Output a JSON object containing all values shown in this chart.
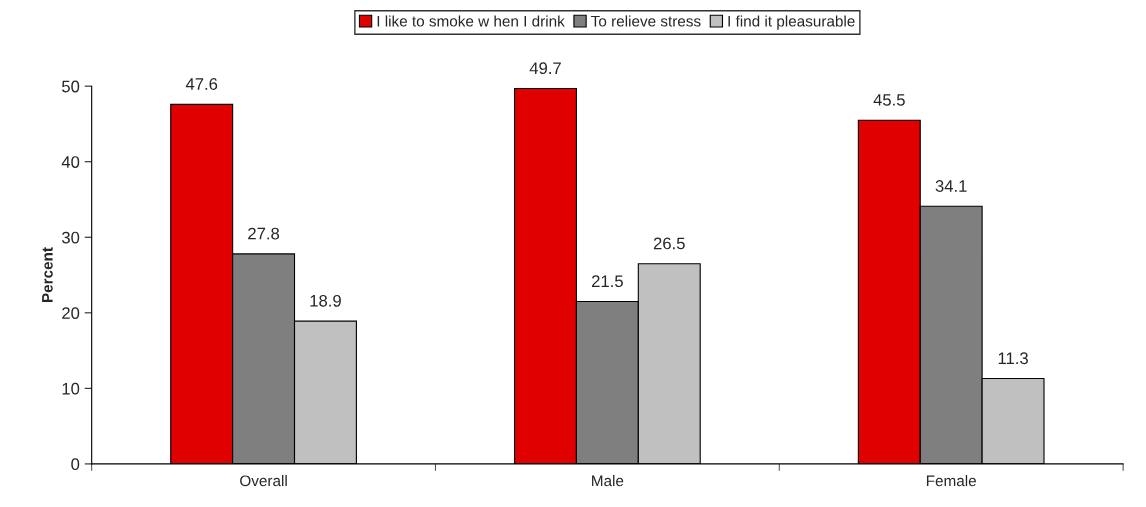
{
  "chart_data": {
    "type": "bar",
    "ylabel": "Percent",
    "categories": [
      "Overall",
      "Male",
      "Female"
    ],
    "series": [
      {
        "name": "I like to smoke w hen I drink",
        "color": "#e00000",
        "values": [
          47.6,
          49.7,
          45.5
        ]
      },
      {
        "name": "To relieve stress",
        "color": "#7f7f7f",
        "values": [
          27.8,
          21.5,
          34.1
        ]
      },
      {
        "name": "I find it pleasurable",
        "color": "#c0c0c0",
        "values": [
          18.9,
          26.5,
          11.3
        ]
      }
    ],
    "ylim": [
      0,
      50
    ],
    "yticks": [
      0,
      10,
      20,
      30,
      40,
      50
    ],
    "grid": false,
    "legend": "top",
    "data_labels": true
  }
}
